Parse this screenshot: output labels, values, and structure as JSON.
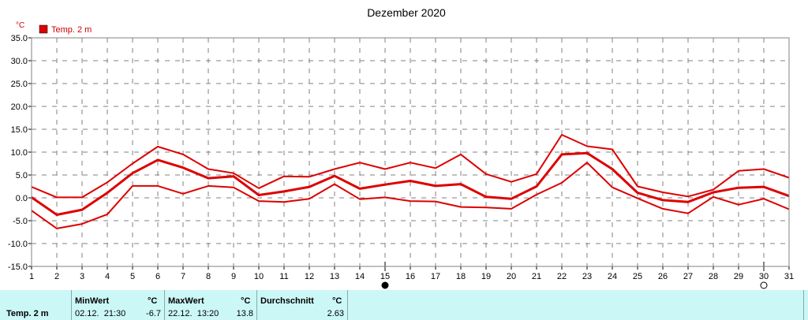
{
  "chart_data": {
    "type": "line",
    "title": "Dezember 2020",
    "y_unit": "°C",
    "legend": [
      {
        "label": "Temp. 2 m",
        "color": "#dd0000",
        "marker": "square",
        "placement": "top-left"
      }
    ],
    "x_categories": [
      "1",
      "2",
      "3",
      "4",
      "5",
      "6",
      "7",
      "8",
      "9",
      "10",
      "11",
      "12",
      "13",
      "14",
      "15",
      "16",
      "17",
      "18",
      "19",
      "20",
      "21",
      "22",
      "23",
      "24",
      "25",
      "26",
      "27",
      "28",
      "29",
      "30",
      "31"
    ],
    "y_ticks": [
      "35.0",
      "30.0",
      "25.0",
      "20.0",
      "15.0",
      "10.0",
      "5.0",
      "0.0",
      "-5.0",
      "-10.0",
      "-15.0"
    ],
    "ylim": [
      -15,
      35
    ],
    "grid": true,
    "series": [
      {
        "role": "max",
        "values": [
          2.4,
          0.1,
          0.1,
          3.4,
          7.5,
          11.2,
          9.5,
          6.3,
          5.4,
          2.1,
          4.7,
          4.6,
          6.3,
          7.7,
          6.3,
          7.7,
          6.5,
          9.5,
          5.2,
          3.5,
          5.2,
          13.8,
          11.3,
          10.6,
          2.5,
          1.2,
          0.3,
          1.8,
          5.9,
          6.3,
          4.4
        ]
      },
      {
        "role": "mean",
        "values": [
          0.1,
          -3.7,
          -2.6,
          1.1,
          5.4,
          8.3,
          6.6,
          4.3,
          4.7,
          0.6,
          1.4,
          2.4,
          4.8,
          2.0,
          2.9,
          3.7,
          2.6,
          3.0,
          0.2,
          -0.2,
          2.5,
          9.5,
          9.8,
          6.3,
          1.1,
          -0.5,
          -0.9,
          1.2,
          2.2,
          2.4,
          0.4
        ]
      },
      {
        "role": "min",
        "values": [
          -2.8,
          -6.7,
          -5.7,
          -3.6,
          2.6,
          2.6,
          0.9,
          2.6,
          2.3,
          -0.7,
          -0.9,
          -0.2,
          3.0,
          -0.3,
          0.1,
          -0.7,
          -0.8,
          -2.0,
          -2.1,
          -2.4,
          0.7,
          3.3,
          7.7,
          2.3,
          -0.1,
          -2.4,
          -3.4,
          0.2,
          -1.5,
          -0.2,
          -2.5
        ]
      }
    ],
    "moon_phases": [
      {
        "day": 15,
        "phase": "new-moon"
      },
      {
        "day": 30,
        "phase": "full-moon"
      }
    ]
  },
  "colors": {
    "series": "#dd0000",
    "grid": "#808080",
    "stats_bg": "#ccf7f7"
  },
  "stats": {
    "label": "Temp. 2 m",
    "min": {
      "header": "MinWert",
      "unit": "°C",
      "time": "02.12.  21:30",
      "value": "-6.7"
    },
    "max": {
      "header": "MaxWert",
      "unit": "°C",
      "time": "22.12.  13:20",
      "value": "13.8"
    },
    "avg": {
      "header": "Durchschnitt",
      "unit": "°C",
      "value": "2.63"
    }
  }
}
